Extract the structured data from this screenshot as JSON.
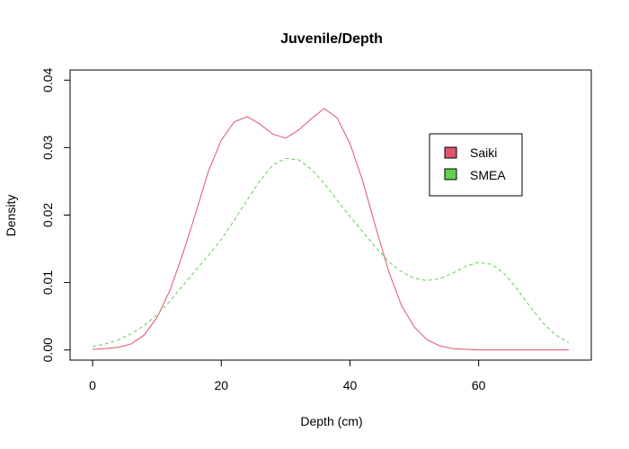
{
  "chart_data": {
    "type": "line",
    "title": "Juvenile/Depth",
    "xlabel": "Depth (cm)",
    "ylabel": "Density",
    "xlim": [
      -3.5,
      77.5
    ],
    "ylim": [
      -0.0015,
      0.0415
    ],
    "x_ticks": [
      0,
      20,
      40,
      60
    ],
    "y_ticks": [
      0.0,
      0.01,
      0.02,
      0.03,
      0.04
    ],
    "x_tick_labels": [
      "0",
      "20",
      "40",
      "60"
    ],
    "y_tick_labels": [
      "0.00",
      "0.01",
      "0.02",
      "0.03",
      "0.04"
    ],
    "grid": false,
    "legend_position": "top-right",
    "series": [
      {
        "name": "Saiki",
        "color": "#DF536B",
        "line_style": "solid",
        "x": [
          0,
          2,
          4,
          6,
          8,
          10,
          12,
          14,
          16,
          18,
          20,
          22,
          24,
          26,
          28,
          30,
          32,
          34,
          36,
          38,
          40,
          42,
          44,
          46,
          48,
          50,
          52,
          54,
          56,
          58,
          60,
          62,
          64,
          66,
          68,
          70,
          72,
          74
        ],
        "y": [
          0.0001,
          0.0002,
          0.0004,
          0.0009,
          0.0022,
          0.0048,
          0.0088,
          0.0142,
          0.0202,
          0.0265,
          0.0311,
          0.0338,
          0.0346,
          0.0335,
          0.032,
          0.0314,
          0.0326,
          0.0343,
          0.0358,
          0.0344,
          0.0306,
          0.025,
          0.0182,
          0.0117,
          0.0066,
          0.0034,
          0.0015,
          0.0006,
          0.0002,
          0.0001,
          0.0,
          0.0,
          0.0,
          0.0,
          0.0,
          0.0,
          0.0,
          0.0
        ]
      },
      {
        "name": "SMEA",
        "color": "#61D04F",
        "line_style": "dashed",
        "x": [
          0,
          2,
          4,
          6,
          8,
          10,
          12,
          14,
          16,
          18,
          20,
          22,
          24,
          26,
          28,
          30,
          32,
          34,
          36,
          38,
          40,
          42,
          44,
          46,
          48,
          50,
          52,
          54,
          56,
          58,
          60,
          62,
          64,
          66,
          68,
          70,
          72,
          74
        ],
        "y": [
          0.0005,
          0.0009,
          0.0015,
          0.0024,
          0.0036,
          0.0052,
          0.0072,
          0.0095,
          0.0118,
          0.014,
          0.0164,
          0.0192,
          0.0222,
          0.0251,
          0.0274,
          0.0284,
          0.0282,
          0.0268,
          0.0247,
          0.0222,
          0.0198,
          0.0175,
          0.0152,
          0.0131,
          0.0116,
          0.0106,
          0.0103,
          0.0106,
          0.0114,
          0.0124,
          0.013,
          0.0127,
          0.0113,
          0.009,
          0.0064,
          0.004,
          0.0022,
          0.0011
        ]
      }
    ]
  }
}
